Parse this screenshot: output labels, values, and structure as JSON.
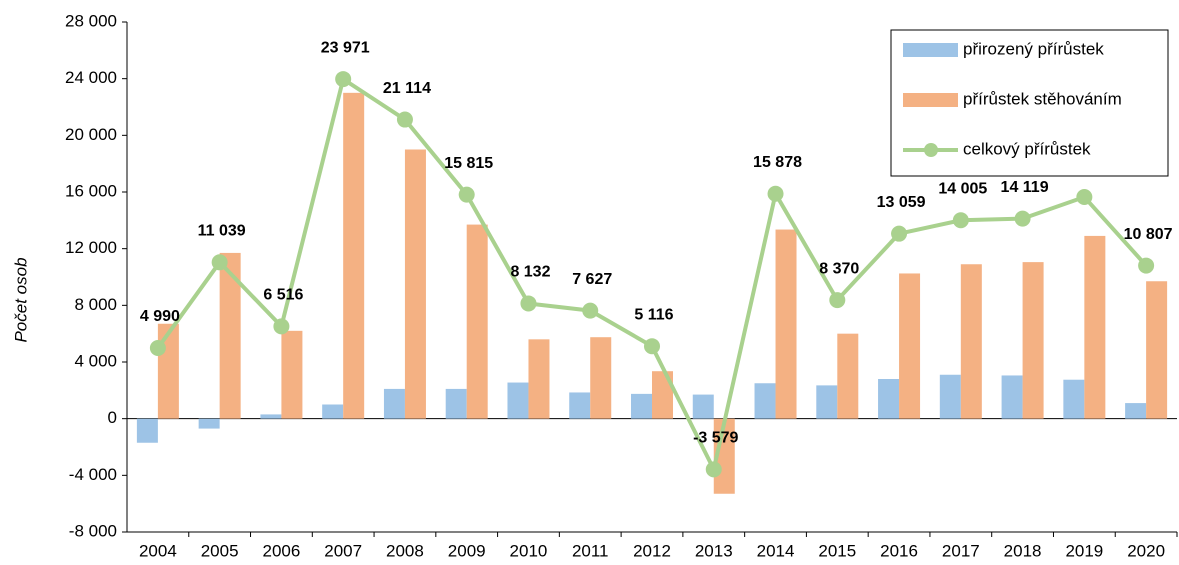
{
  "chart_data": {
    "type": "bar_line",
    "y_label": "Počet osob",
    "categories": [
      "2004",
      "2005",
      "2006",
      "2007",
      "2008",
      "2009",
      "2010",
      "2011",
      "2012",
      "2013",
      "2014",
      "2015",
      "2016",
      "2017",
      "2018",
      "2019",
      "2020"
    ],
    "series": [
      {
        "name": "přirozený přírůstek",
        "color": "#9dc3e6",
        "kind": "bar",
        "values": [
          -1700,
          -700,
          300,
          1000,
          2100,
          2100,
          2550,
          1850,
          1750,
          1700,
          2500,
          2350,
          2800,
          3100,
          3050,
          2750,
          1100
        ]
      },
      {
        "name": "přírůstek stěhováním",
        "color": "#f4b183",
        "kind": "bar",
        "values": [
          6700,
          11700,
          6200,
          23000,
          19000,
          13700,
          5600,
          5750,
          3350,
          -5300,
          13350,
          6000,
          10250,
          10900,
          11050,
          12900,
          9700
        ]
      },
      {
        "name": "celkový přírůstek",
        "color": "#a9d18e",
        "kind": "line",
        "values": [
          4990,
          11039,
          6516,
          23971,
          21114,
          15815,
          8132,
          7627,
          5116,
          -3579,
          15878,
          8370,
          13059,
          14005,
          14119,
          15645,
          10807
        ],
        "value_labels": [
          "4 990",
          "11 039",
          "6 516",
          "23 971",
          "21 114",
          "15 815",
          "8 132",
          "7 627",
          "5 116",
          "-3 579",
          "15 878",
          "8 370",
          "13 059",
          "14 005",
          "14 119",
          "15 645",
          "10 807"
        ]
      }
    ],
    "ylim": [
      -8000,
      28000
    ],
    "yticks": [
      {
        "value": -8000,
        "label": "-8 000"
      },
      {
        "value": -4000,
        "label": "-4 000"
      },
      0,
      {
        "value": 4000,
        "label": "4 000"
      },
      {
        "value": 8000,
        "label": "8 000"
      },
      {
        "value": 12000,
        "label": "12 000"
      },
      {
        "value": 16000,
        "label": "16 000"
      },
      {
        "value": 20000,
        "label": "20 000"
      },
      {
        "value": 24000,
        "label": "24 000"
      },
      {
        "value": 28000,
        "label": "28 000"
      }
    ],
    "legend": "top-right"
  }
}
